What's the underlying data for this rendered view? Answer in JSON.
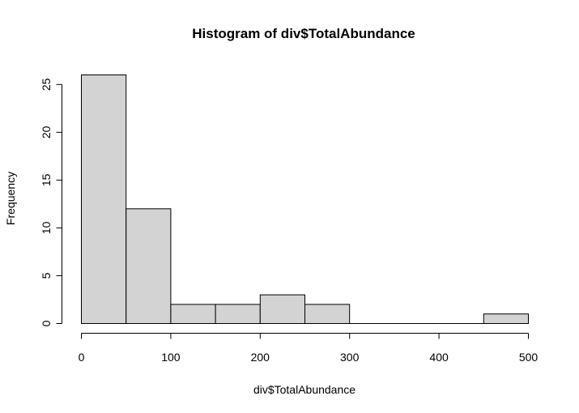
{
  "chart_data": {
    "type": "bar",
    "title": "Histogram of div$TotalAbundance",
    "xlabel": "div$TotalAbundance",
    "ylabel": "Frequency",
    "bins": [
      {
        "start": 0,
        "end": 50,
        "count": 26
      },
      {
        "start": 50,
        "end": 100,
        "count": 12
      },
      {
        "start": 100,
        "end": 150,
        "count": 2
      },
      {
        "start": 150,
        "end": 200,
        "count": 2
      },
      {
        "start": 200,
        "end": 250,
        "count": 3
      },
      {
        "start": 250,
        "end": 300,
        "count": 2
      },
      {
        "start": 300,
        "end": 350,
        "count": 0
      },
      {
        "start": 350,
        "end": 400,
        "count": 0
      },
      {
        "start": 400,
        "end": 450,
        "count": 0
      },
      {
        "start": 450,
        "end": 500,
        "count": 1
      }
    ],
    "xlim": [
      0,
      500
    ],
    "ylim": [
      0,
      26
    ],
    "x_ticks": [
      "0",
      "100",
      "200",
      "300",
      "400",
      "500"
    ],
    "y_ticks": [
      "0",
      "5",
      "10",
      "15",
      "20",
      "25"
    ],
    "bar_color": "#d3d3d3",
    "grid": false
  }
}
